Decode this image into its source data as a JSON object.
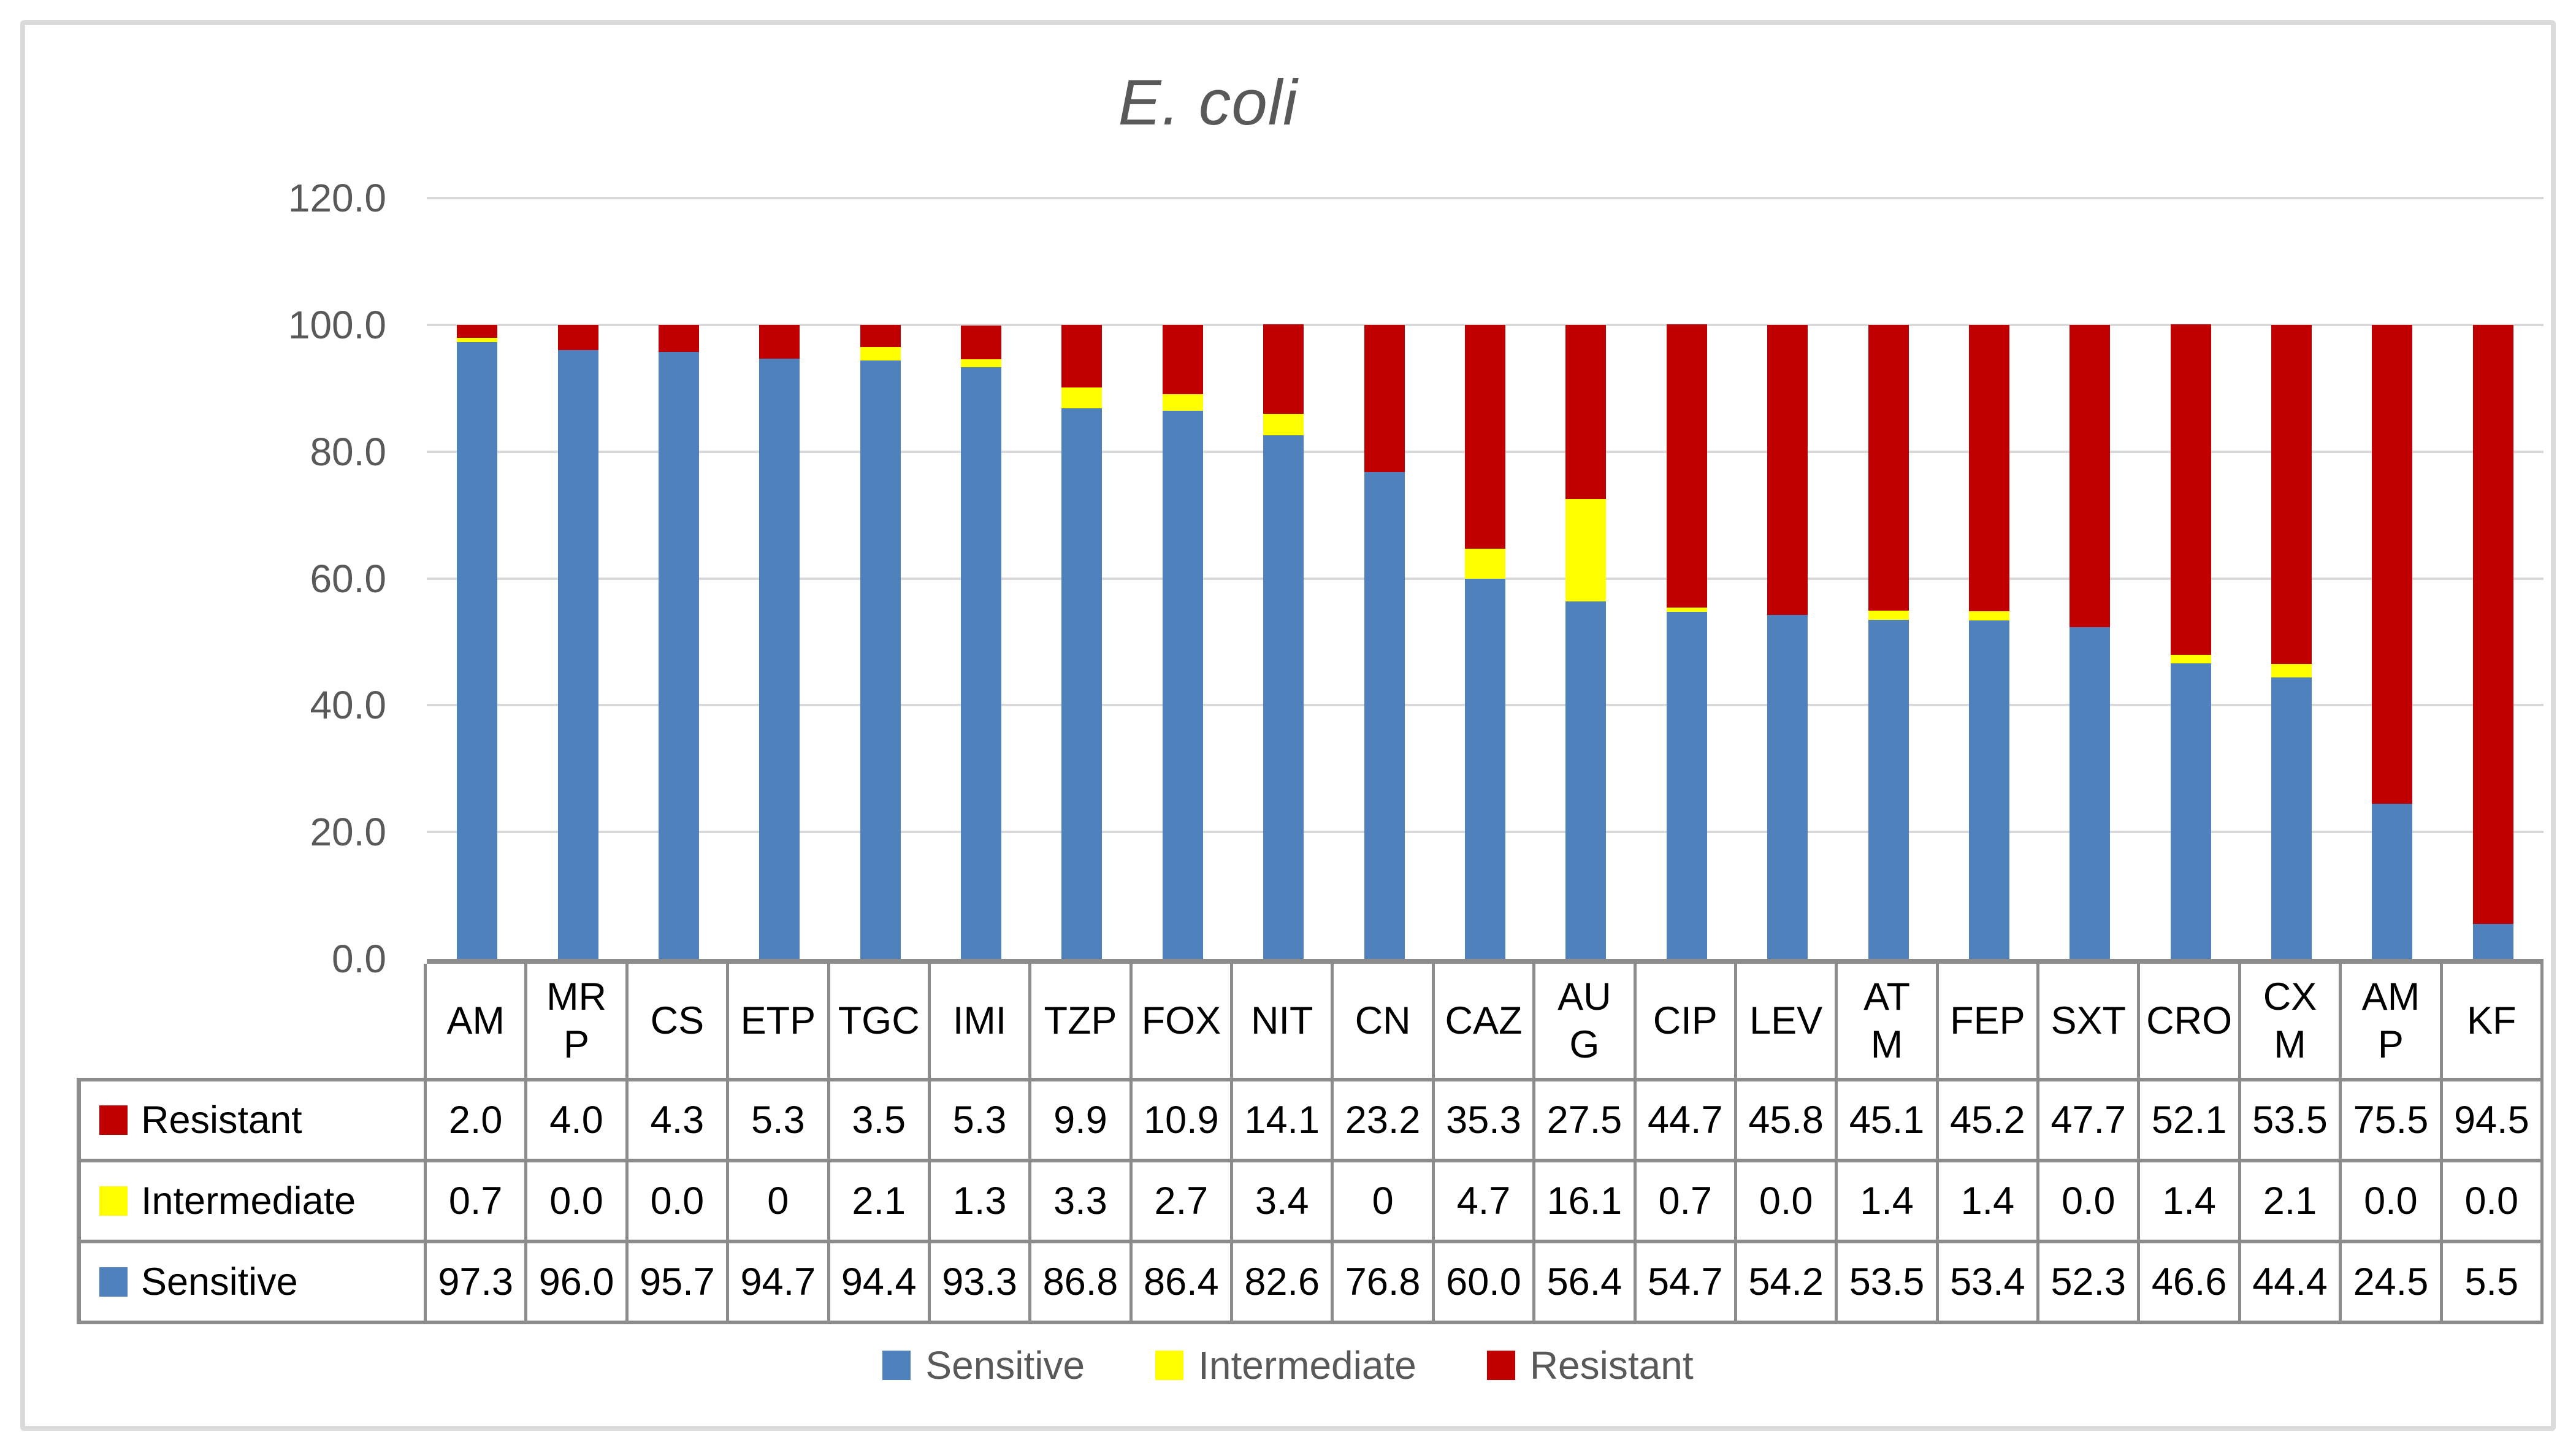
{
  "title": "E. coli",
  "colors": {
    "sensitive": "#4F81BD",
    "intermediate": "#FFFF00",
    "resistant": "#C00000",
    "gridline": "#D9D9D9",
    "axis_text": "#595959",
    "table_border": "#8C8C8C",
    "figure_border": "#DBDBDB"
  },
  "y_axis": {
    "ticks": [
      "120.0",
      "100.0",
      "80.0",
      "60.0",
      "40.0",
      "20.0",
      "0.0"
    ],
    "max": 120,
    "min": 0
  },
  "chart_data": {
    "type": "bar",
    "stacked": true,
    "title": "E. coli",
    "categories": [
      "AM",
      "MRP",
      "CS",
      "ETP",
      "TGC",
      "IMI",
      "TZP",
      "FOX",
      "NIT",
      "CN",
      "CAZ",
      "AUG",
      "CIP",
      "LEV",
      "ATM",
      "FEP",
      "SXT",
      "CRO",
      "CXM",
      "AMP",
      "KF"
    ],
    "series": [
      {
        "name": "Sensitive",
        "color": "#4F81BD",
        "values": [
          97.3,
          96.0,
          95.7,
          94.7,
          94.4,
          93.3,
          86.8,
          86.4,
          82.6,
          76.8,
          60.0,
          56.4,
          54.7,
          54.2,
          53.5,
          53.4,
          52.3,
          46.6,
          44.4,
          24.5,
          5.5
        ]
      },
      {
        "name": "Intermediate",
        "color": "#FFFF00",
        "values": [
          0.7,
          0.0,
          0.0,
          0,
          2.1,
          1.3,
          3.3,
          2.7,
          3.4,
          0,
          4.7,
          16.1,
          0.7,
          0.0,
          1.4,
          1.4,
          0.0,
          1.4,
          2.1,
          0.0,
          0.0
        ]
      },
      {
        "name": "Resistant",
        "color": "#C00000",
        "values": [
          2.0,
          4.0,
          4.3,
          5.3,
          3.5,
          5.3,
          9.9,
          10.9,
          14.1,
          23.2,
          35.3,
          27.5,
          44.7,
          45.8,
          45.1,
          45.2,
          47.7,
          52.1,
          53.5,
          75.5,
          94.5
        ]
      }
    ],
    "ylim": [
      0,
      120
    ],
    "grid": true,
    "legend_position": "bottom"
  },
  "table": {
    "header_labels": [
      "AM",
      "MR\nP",
      "CS",
      "ETP",
      "TGC",
      "IMI",
      "TZP",
      "FOX",
      "NIT",
      "CN",
      "CAZ",
      "AU\nG",
      "CIP",
      "LEV",
      "AT\nM",
      "FEP",
      "SXT",
      "CRO",
      "CX\nM",
      "AM\nP",
      "KF"
    ],
    "rows": [
      {
        "label": "Resistant",
        "key_color": "#C00000",
        "values": [
          "2.0",
          "4.0",
          "4.3",
          "5.3",
          "3.5",
          "5.3",
          "9.9",
          "10.9",
          "14.1",
          "23.2",
          "35.3",
          "27.5",
          "44.7",
          "45.8",
          "45.1",
          "45.2",
          "47.7",
          "52.1",
          "53.5",
          "75.5",
          "94.5"
        ]
      },
      {
        "label": "Intermediate",
        "key_color": "#FFFF00",
        "values": [
          "0.7",
          "0.0",
          "0.0",
          "0",
          "2.1",
          "1.3",
          "3.3",
          "2.7",
          "3.4",
          "0",
          "4.7",
          "16.1",
          "0.7",
          "0.0",
          "1.4",
          "1.4",
          "0.0",
          "1.4",
          "2.1",
          "0.0",
          "0.0"
        ]
      },
      {
        "label": "Sensitive",
        "key_color": "#4F81BD",
        "values": [
          "97.3",
          "96.0",
          "95.7",
          "94.7",
          "94.4",
          "93.3",
          "86.8",
          "86.4",
          "82.6",
          "76.8",
          "60.0",
          "56.4",
          "54.7",
          "54.2",
          "53.5",
          "53.4",
          "52.3",
          "46.6",
          "44.4",
          "24.5",
          "5.5"
        ]
      }
    ]
  },
  "legend": {
    "items": [
      {
        "label": "Sensitive",
        "color": "#4F81BD"
      },
      {
        "label": "Intermediate",
        "color": "#FFFF00"
      },
      {
        "label": "Resistant",
        "color": "#C00000"
      }
    ]
  }
}
